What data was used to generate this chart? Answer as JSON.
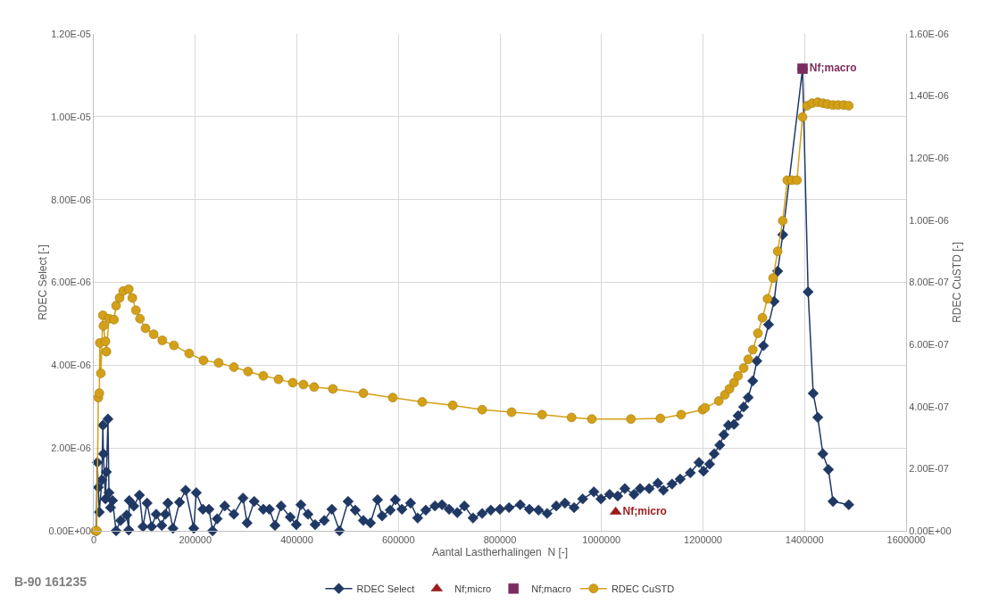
{
  "chart_data": {
    "type": "line",
    "xlabel": "Aantal Lastherhalingen  N [-]",
    "ylabel": "RDEC Select [-]",
    "y2label": "RDEC CuSTD [-]",
    "xlim": [
      0,
      1600000
    ],
    "xticks": [
      0,
      200000,
      400000,
      600000,
      800000,
      1000000,
      1200000,
      1400000,
      1600000
    ],
    "ylim": [
      0,
      1.2e-05
    ],
    "yticks": [
      {
        "value": 0,
        "label": "0.00E+00"
      },
      {
        "value": 2e-06,
        "label": "2.00E-06"
      },
      {
        "value": 4e-06,
        "label": "4.00E-06"
      },
      {
        "value": 6e-06,
        "label": "6.00E-06"
      },
      {
        "value": 8e-06,
        "label": "8.00E-06"
      },
      {
        "value": 1e-05,
        "label": "1.00E-05"
      },
      {
        "value": 1.2e-05,
        "label": "1.20E-05"
      }
    ],
    "y2lim": [
      0,
      1.6e-06
    ],
    "y2ticks": [
      {
        "value": 0,
        "label": "0.00E+00"
      },
      {
        "value": 2e-07,
        "label": "2.00E-07"
      },
      {
        "value": 4e-07,
        "label": "4.00E-07"
      },
      {
        "value": 6e-07,
        "label": "6.00E-07"
      },
      {
        "value": 8e-07,
        "label": "8.00E-07"
      },
      {
        "value": 1e-06,
        "label": "1.00E-06"
      },
      {
        "value": 1.2e-06,
        "label": "1.20E-06"
      },
      {
        "value": 1.4e-06,
        "label": "1.40E-06"
      },
      {
        "value": 1.6e-06,
        "label": "1.60E-06"
      }
    ],
    "grid": true,
    "legend": "bottom",
    "line_style": "solid",
    "annotations": [
      "B-90 161235"
    ],
    "series": [
      {
        "name": "RDEC Select",
        "type": "line",
        "marker": "diamond",
        "color": "#1f3864",
        "x": [
          5000,
          7000,
          9000,
          11000,
          16000,
          18000,
          19000,
          23000,
          25000,
          28000,
          30000,
          33000,
          37000,
          44000,
          53000,
          65000,
          69000,
          70000,
          79000,
          90000,
          97000,
          105000,
          114000,
          123000,
          134000,
          141000,
          146000,
          156000,
          169000,
          181000,
          197000,
          202000,
          215000,
          227000,
          234000,
          243000,
          258000,
          276000,
          294000,
          302000,
          316000,
          334000,
          346000,
          357000,
          369000,
          387000,
          399000,
          408000,
          422000,
          436000,
          454000,
          469000,
          484000,
          501000,
          515000,
          531000,
          545000,
          559000,
          568000,
          584000,
          594000,
          607000,
          624000,
          638000,
          654000,
          672000,
          686000,
          700000,
          716000,
          730000,
          747000,
          765000,
          782000,
          800000,
          818000,
          840000,
          858000,
          876000,
          893000,
          911000,
          928000,
          946000,
          963000,
          985000,
          999000,
          1016000,
          1032000,
          1046000,
          1064000,
          1076000,
          1094000,
          1111000,
          1122000,
          1139000,
          1155000,
          1175000,
          1192000,
          1201000,
          1213000,
          1222000,
          1233000,
          1241000,
          1250000,
          1261000,
          1269000,
          1280000,
          1289000,
          1298000,
          1306000,
          1319000,
          1329000,
          1340000,
          1347000,
          1357000,
          1396000,
          1407000,
          1417000,
          1426000,
          1436000,
          1447000,
          1456000,
          1487000
        ],
        "values": [
          0,
          1.65e-06,
          1.05e-06,
          4.5e-07,
          1.23e-06,
          2.55e-06,
          1.86e-06,
          7.7e-07,
          1.42e-06,
          2.7e-06,
          9.2e-07,
          5.6e-07,
          7.3e-07,
          0,
          2.5e-07,
          3.8e-07,
          2e-08,
          7.3e-07,
          6e-07,
          8.6e-07,
          1e-07,
          6.7e-07,
          1e-07,
          4e-07,
          1.3e-07,
          4e-07,
          6.7e-07,
          6e-08,
          6.9e-07,
          9.8e-07,
          6e-08,
          9.2e-07,
          5.2e-07,
          5.2e-07,
          0,
          2.9e-07,
          6e-07,
          4e-07,
          7.9e-07,
          1.9e-07,
          7.1e-07,
          5.2e-07,
          5.2e-07,
          1.3e-07,
          6e-07,
          3.3e-07,
          1.5e-07,
          6.3e-07,
          4e-07,
          1.5e-07,
          2.5e-07,
          5.2e-07,
          0,
          7.1e-07,
          5e-07,
          2.5e-07,
          1.9e-07,
          7.5e-07,
          3.6e-07,
          5e-07,
          7.5e-07,
          5.2e-07,
          6.7e-07,
          3.1e-07,
          5e-07,
          6e-07,
          6.3e-07,
          5.2e-07,
          4.4e-07,
          6e-07,
          3.1e-07,
          4.2e-07,
          5e-07,
          5.2e-07,
          5.6e-07,
          6.3e-07,
          5.2e-07,
          5e-07,
          4.2e-07,
          6e-07,
          6.7e-07,
          5.6e-07,
          7.7e-07,
          9.4e-07,
          7.7e-07,
          8.8e-07,
          8.4e-07,
          1.02e-06,
          8.8e-07,
          1.02e-06,
          1.02e-06,
          1.15e-06,
          9.8e-07,
          1.13e-06,
          1.25e-06,
          1.4e-06,
          1.65e-06,
          1.44e-06,
          1.61e-06,
          1.86e-06,
          2.07e-06,
          2.32e-06,
          2.55e-06,
          2.57e-06,
          2.78e-06,
          2.99e-06,
          3.22e-06,
          3.62e-06,
          4.1e-06,
          4.47e-06,
          4.98e-06,
          5.54e-06,
          6.27e-06,
          7.15e-06,
          1.116e-05,
          5.77e-06,
          3.32e-06,
          2.74e-06,
          1.86e-06,
          1.48e-06,
          7.1e-07,
          6.3e-07
        ]
      },
      {
        "name": "Nf;micro",
        "type": "scatter",
        "marker": "triangle",
        "color": "#9b1c1c",
        "x": [
          1028000
        ],
        "values": [
          4.6e-07
        ]
      },
      {
        "name": "Nf;macro",
        "type": "scatter",
        "marker": "square",
        "color": "#7b2c5e",
        "x": [
          1396000
        ],
        "values": [
          1.116e-05
        ]
      },
      {
        "name": "RDEC CuSTD",
        "type": "line",
        "marker": "circle",
        "color": "#d4a017",
        "axis": "y2",
        "x": [
          3000,
          6000,
          9000,
          11000,
          12000,
          14000,
          18000,
          19000,
          23000,
          25000,
          30000,
          40000,
          44000,
          51000,
          58000,
          69000,
          76000,
          83000,
          91000,
          102000,
          118000,
          135000,
          158000,
          188000,
          216000,
          246000,
          276000,
          304000,
          334000,
          364000,
          392000,
          413000,
          434000,
          471000,
          531000,
          589000,
          647000,
          707000,
          765000,
          823000,
          883000,
          941000,
          981000,
          1058000,
          1116000,
          1157000,
          1199000,
          1204000,
          1231000,
          1243000,
          1252000,
          1261000,
          1269000,
          1280000,
          1289000,
          1298000,
          1308000,
          1317000,
          1327000,
          1338000,
          1347000,
          1357000,
          1366000,
          1375000,
          1385000,
          1396000,
          1405000,
          1415000,
          1426000,
          1436000,
          1445000,
          1456000,
          1466000,
          1477000,
          1487000
        ],
        "values": [
          0,
          0,
          4.29e-07,
          4.43e-07,
          6.05e-07,
          5.07e-07,
          6.94e-07,
          6.6e-07,
          6.1e-07,
          5.77e-07,
          6.83e-07,
          6.8e-07,
          7.25e-07,
          7.5e-07,
          7.72e-07,
          7.78e-07,
          7.5e-07,
          7.1e-07,
          6.83e-07,
          6.52e-07,
          6.33e-07,
          6.13e-07,
          5.97e-07,
          5.71e-07,
          5.49e-07,
          5.41e-07,
          5.27e-07,
          5.13e-07,
          4.99e-07,
          4.88e-07,
          4.77e-07,
          4.71e-07,
          4.63e-07,
          4.57e-07,
          4.43e-07,
          4.29e-07,
          4.15e-07,
          4.04e-07,
          3.9e-07,
          3.82e-07,
          3.74e-07,
          3.65e-07,
          3.6e-07,
          3.6e-07,
          3.62e-07,
          3.74e-07,
          3.9e-07,
          3.96e-07,
          4.18e-07,
          4.38e-07,
          4.57e-07,
          4.77e-07,
          4.99e-07,
          5.24e-07,
          5.52e-07,
          5.83e-07,
          6.36e-07,
          6.86e-07,
          7.47e-07,
          8.14e-07,
          9e-07,
          9.98e-07,
          1.129e-06,
          1.129e-06,
          1.129e-06,
          1.332e-06,
          1.369e-06,
          1.377e-06,
          1.38e-06,
          1.377e-06,
          1.374e-06,
          1.371e-06,
          1.371e-06,
          1.371e-06,
          1.369e-06
        ]
      }
    ]
  }
}
